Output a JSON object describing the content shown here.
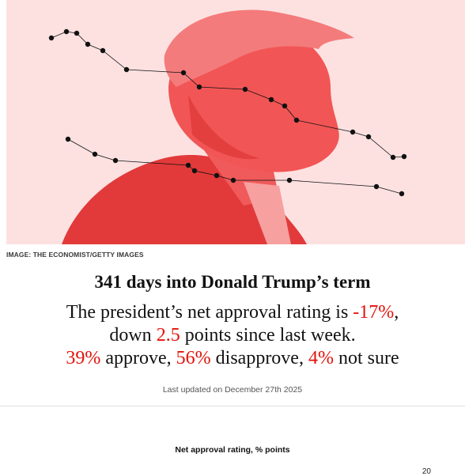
{
  "image_credit": "IMAGE: THE ECONOMIST/GETTY IMAGES",
  "headline": "341 days into Donald Trump’s term",
  "summary": {
    "line1_pre": "The president’s net approval rating is ",
    "net_approval": "-17%",
    "line1_post": ",",
    "line2_pre": "down ",
    "change": "2.5",
    "line2_post": " points since last week.",
    "approve": "39%",
    "approve_label": " approve, ",
    "disapprove": "56%",
    "disapprove_label": " disapprove, ",
    "not_sure": "4%",
    "not_sure_label": " not sure"
  },
  "last_updated": "Last updated on December 27th 2025",
  "chart": {
    "title": "Net approval rating, % points",
    "top_tick": "20"
  },
  "colors": {
    "accent_red": "#e3120b",
    "hero_bg": "#fde1e1",
    "portrait_red": "#ef4a4a"
  }
}
